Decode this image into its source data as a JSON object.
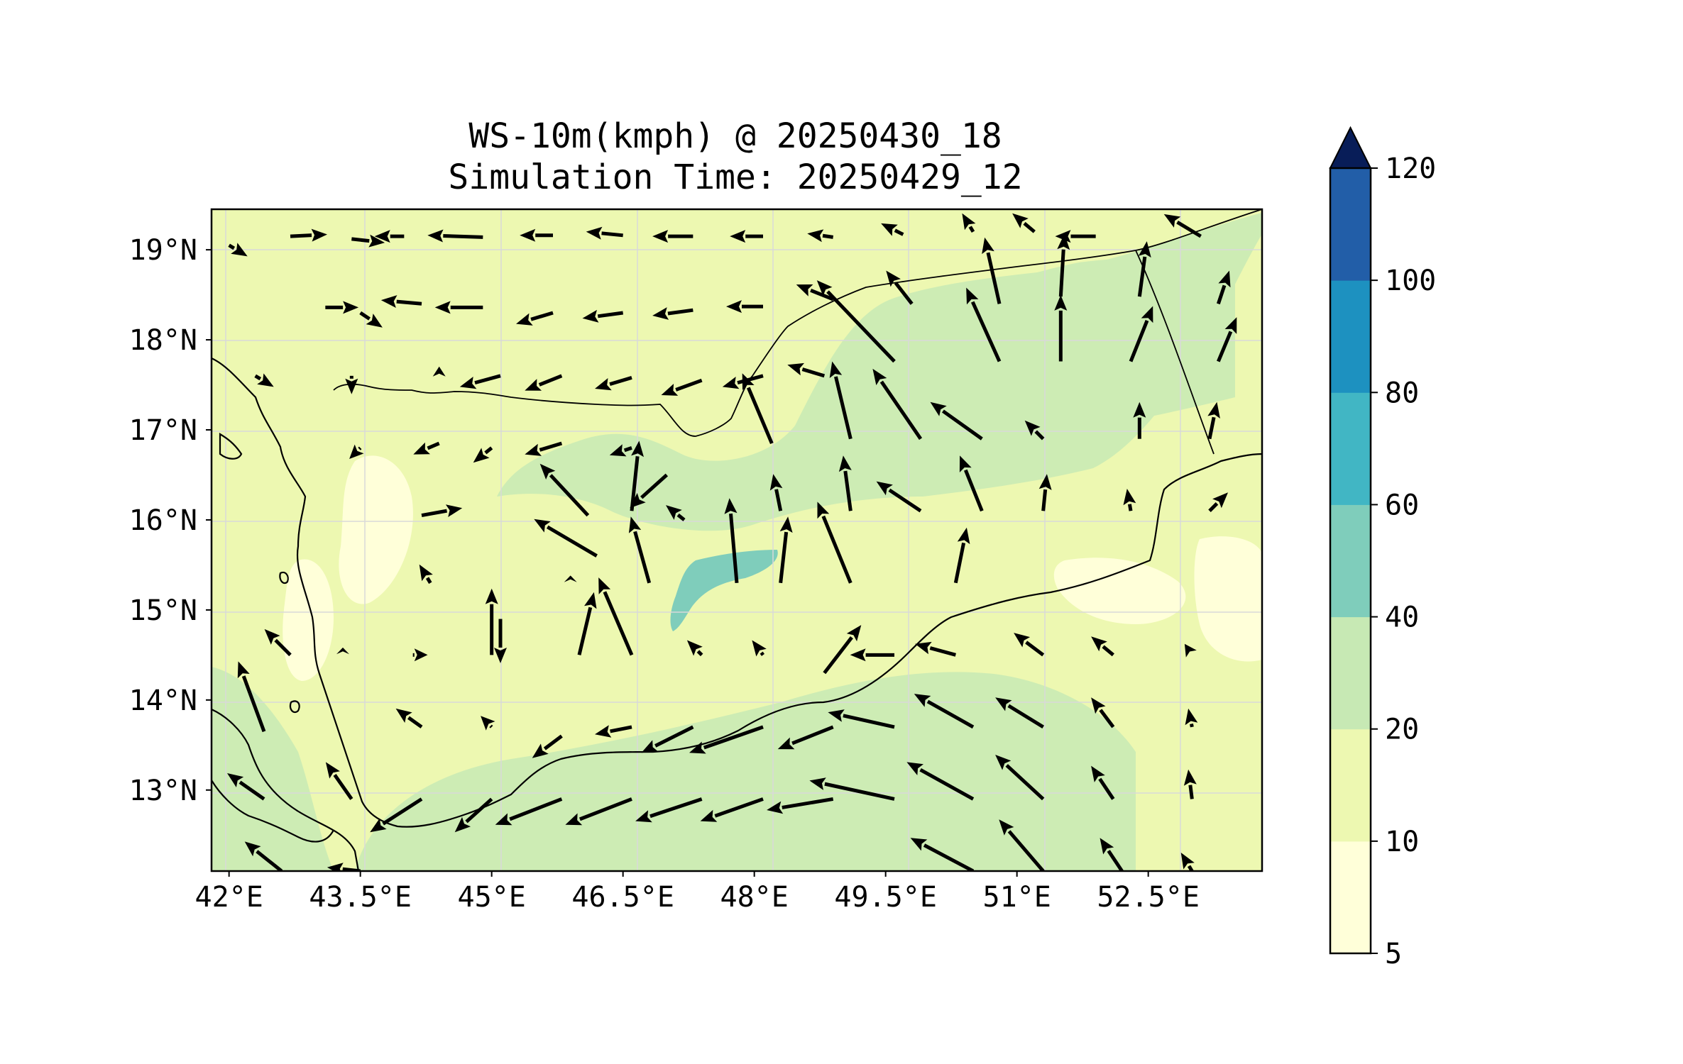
{
  "title": {
    "line1": "WS-10m(kmph) @ 20250430_18",
    "line2": "Simulation Time: 20250429_12"
  },
  "chart_data": {
    "type": "map-contour-vector",
    "variable": "WS-10m(kmph)",
    "valid_time": "20250430_18",
    "simulation_time": "20250429_12",
    "lon_range": [
      41.8,
      53.8
    ],
    "lat_range": [
      12.1,
      19.45
    ],
    "x_ticks": [
      "42°E",
      "43.5°E",
      "45°E",
      "46.5°E",
      "48°E",
      "49.5°E",
      "51°E",
      "52.5°E"
    ],
    "x_tick_values": [
      42,
      43.5,
      45,
      46.5,
      48,
      49.5,
      51,
      52.5
    ],
    "y_ticks": [
      "19°N",
      "18°N",
      "17°N",
      "16°N",
      "15°N",
      "14°N",
      "13°N"
    ],
    "y_tick_values": [
      19,
      18,
      17,
      16,
      15,
      14,
      13
    ],
    "grid": true,
    "colorbar": {
      "levels": [
        5,
        10,
        20,
        40,
        60,
        80,
        100,
        120
      ],
      "tick_labels": [
        "5",
        "10",
        "20",
        "40",
        "60",
        "80",
        "100",
        "120"
      ],
      "colors": [
        "#ffffd9",
        "#edf8b1",
        "#c7e9b4",
        "#7fcdbb",
        "#41b6c4",
        "#1d91c0",
        "#225ea8",
        "#253494"
      ],
      "extend": "max",
      "extend_color": "#081d58"
    },
    "fill_colors": {
      "background": "#edf8b1",
      "calm": "#ffffd9",
      "moderate": "#cdecb4",
      "strong": "#7fcdbb"
    },
    "wind_vectors": [
      {
        "lon": 42.0,
        "lat": 19.05,
        "u": 10,
        "v": -6
      },
      {
        "lon": 42.7,
        "lat": 19.15,
        "u": 20,
        "v": 1
      },
      {
        "lon": 43.4,
        "lat": 19.12,
        "u": 18,
        "v": -2
      },
      {
        "lon": 44.0,
        "lat": 19.15,
        "u": -16,
        "v": 0
      },
      {
        "lon": 44.9,
        "lat": 19.14,
        "u": -30,
        "v": 1
      },
      {
        "lon": 45.7,
        "lat": 19.16,
        "u": -18,
        "v": 0
      },
      {
        "lon": 46.5,
        "lat": 19.16,
        "u": -20,
        "v": 2
      },
      {
        "lon": 47.3,
        "lat": 19.15,
        "u": -22,
        "v": 0
      },
      {
        "lon": 48.1,
        "lat": 19.15,
        "u": -18,
        "v": 0
      },
      {
        "lon": 48.9,
        "lat": 19.14,
        "u": -14,
        "v": 2
      },
      {
        "lon": 49.7,
        "lat": 19.17,
        "u": -12,
        "v": 6
      },
      {
        "lon": 50.5,
        "lat": 19.2,
        "u": -6,
        "v": 10
      },
      {
        "lon": 51.2,
        "lat": 19.2,
        "u": -12,
        "v": 10
      },
      {
        "lon": 51.9,
        "lat": 19.15,
        "u": -22,
        "v": 0
      },
      {
        "lon": 53.1,
        "lat": 19.15,
        "u": -20,
        "v": 12
      },
      {
        "lon": 43.1,
        "lat": 18.36,
        "u": 18,
        "v": 0
      },
      {
        "lon": 43.5,
        "lat": 18.3,
        "u": 12,
        "v": -8
      },
      {
        "lon": 44.2,
        "lat": 18.4,
        "u": -22,
        "v": 2
      },
      {
        "lon": 44.9,
        "lat": 18.36,
        "u": -26,
        "v": 0
      },
      {
        "lon": 45.7,
        "lat": 18.3,
        "u": -20,
        "v": -6
      },
      {
        "lon": 46.5,
        "lat": 18.3,
        "u": -22,
        "v": -3
      },
      {
        "lon": 47.3,
        "lat": 18.33,
        "u": -22,
        "v": -3
      },
      {
        "lon": 48.1,
        "lat": 18.37,
        "u": -20,
        "v": 0
      },
      {
        "lon": 48.9,
        "lat": 18.45,
        "u": -20,
        "v": 8
      },
      {
        "lon": 49.6,
        "lat": 17.76,
        "u": -42,
        "v": 44
      },
      {
        "lon": 49.8,
        "lat": 18.4,
        "u": -14,
        "v": 18
      },
      {
        "lon": 50.8,
        "lat": 17.76,
        "u": -18,
        "v": 40
      },
      {
        "lon": 50.8,
        "lat": 18.4,
        "u": -8,
        "v": 36
      },
      {
        "lon": 51.5,
        "lat": 17.76,
        "u": 0,
        "v": 36
      },
      {
        "lon": 51.5,
        "lat": 18.48,
        "u": 2,
        "v": 34
      },
      {
        "lon": 52.3,
        "lat": 17.76,
        "u": 12,
        "v": 30
      },
      {
        "lon": 52.4,
        "lat": 18.48,
        "u": 4,
        "v": 30
      },
      {
        "lon": 53.3,
        "lat": 17.76,
        "u": 10,
        "v": 24
      },
      {
        "lon": 53.3,
        "lat": 18.4,
        "u": 6,
        "v": 18
      },
      {
        "lon": 42.3,
        "lat": 17.6,
        "u": 10,
        "v": -6
      },
      {
        "lon": 43.4,
        "lat": 17.6,
        "u": 0,
        "v": -10
      },
      {
        "lon": 44.4,
        "lat": 17.58,
        "u": 0,
        "v": 6
      },
      {
        "lon": 45.1,
        "lat": 17.6,
        "u": -22,
        "v": -6
      },
      {
        "lon": 45.8,
        "lat": 17.6,
        "u": -20,
        "v": -8
      },
      {
        "lon": 46.6,
        "lat": 17.58,
        "u": -20,
        "v": -6
      },
      {
        "lon": 47.4,
        "lat": 17.55,
        "u": -22,
        "v": -8
      },
      {
        "lon": 48.1,
        "lat": 17.6,
        "u": -22,
        "v": -6
      },
      {
        "lon": 48.8,
        "lat": 17.6,
        "u": -20,
        "v": 6
      },
      {
        "lon": 42.9,
        "lat": 16.9,
        "u": 0,
        "v": 0
      },
      {
        "lon": 43.5,
        "lat": 16.8,
        "u": -6,
        "v": -6
      },
      {
        "lon": 44.4,
        "lat": 16.85,
        "u": -14,
        "v": -6
      },
      {
        "lon": 45.0,
        "lat": 16.8,
        "u": -10,
        "v": -8
      },
      {
        "lon": 45.8,
        "lat": 16.85,
        "u": -20,
        "v": -6
      },
      {
        "lon": 46.6,
        "lat": 16.8,
        "u": -12,
        "v": -4
      },
      {
        "lon": 47.0,
        "lat": 16.5,
        "u": -20,
        "v": -18
      },
      {
        "lon": 46.6,
        "lat": 16.1,
        "u": 4,
        "v": 38
      },
      {
        "lon": 48.2,
        "lat": 16.85,
        "u": -16,
        "v": 38
      },
      {
        "lon": 49.1,
        "lat": 16.9,
        "u": -10,
        "v": 42
      },
      {
        "lon": 49.9,
        "lat": 16.9,
        "u": -26,
        "v": 38
      },
      {
        "lon": 50.6,
        "lat": 16.9,
        "u": -28,
        "v": 20
      },
      {
        "lon": 51.3,
        "lat": 16.9,
        "u": -10,
        "v": 10
      },
      {
        "lon": 52.4,
        "lat": 16.9,
        "u": 0,
        "v": 20
      },
      {
        "lon": 53.2,
        "lat": 16.9,
        "u": 4,
        "v": 20
      },
      {
        "lon": 44.2,
        "lat": 16.05,
        "u": 22,
        "v": 4
      },
      {
        "lon": 46.1,
        "lat": 16.05,
        "u": -26,
        "v": 28
      },
      {
        "lon": 46.2,
        "lat": 15.6,
        "u": -34,
        "v": 20
      },
      {
        "lon": 46.8,
        "lat": 15.3,
        "u": -10,
        "v": 36
      },
      {
        "lon": 47.2,
        "lat": 16.0,
        "u": -10,
        "v": 8
      },
      {
        "lon": 47.8,
        "lat": 15.3,
        "u": -4,
        "v": 46
      },
      {
        "lon": 48.3,
        "lat": 15.3,
        "u": 4,
        "v": 36
      },
      {
        "lon": 48.3,
        "lat": 16.1,
        "u": -4,
        "v": 20
      },
      {
        "lon": 49.1,
        "lat": 15.3,
        "u": -18,
        "v": 44
      },
      {
        "lon": 49.1,
        "lat": 16.1,
        "u": -4,
        "v": 30
      },
      {
        "lon": 49.9,
        "lat": 16.1,
        "u": -24,
        "v": 16
      },
      {
        "lon": 50.3,
        "lat": 15.3,
        "u": 6,
        "v": 30
      },
      {
        "lon": 50.6,
        "lat": 16.1,
        "u": -12,
        "v": 30
      },
      {
        "lon": 51.3,
        "lat": 16.1,
        "u": 2,
        "v": 20
      },
      {
        "lon": 52.3,
        "lat": 16.1,
        "u": -2,
        "v": 12
      },
      {
        "lon": 53.2,
        "lat": 16.1,
        "u": 10,
        "v": 10
      },
      {
        "lon": 42.7,
        "lat": 15.2,
        "u": 0,
        "v": 0
      },
      {
        "lon": 44.3,
        "lat": 15.3,
        "u": -6,
        "v": 10
      },
      {
        "lon": 45.0,
        "lat": 14.5,
        "u": 0,
        "v": 36
      },
      {
        "lon": 45.1,
        "lat": 14.9,
        "u": 0,
        "v": -24
      },
      {
        "lon": 45.9,
        "lat": 15.3,
        "u": 0,
        "v": 4
      },
      {
        "lon": 46.0,
        "lat": 14.5,
        "u": 8,
        "v": 34
      },
      {
        "lon": 46.6,
        "lat": 14.5,
        "u": -18,
        "v": 42
      },
      {
        "lon": 47.4,
        "lat": 14.5,
        "u": -8,
        "v": 8
      },
      {
        "lon": 48.1,
        "lat": 14.5,
        "u": -6,
        "v": 8
      },
      {
        "lon": 48.8,
        "lat": 14.3,
        "u": 20,
        "v": 26
      },
      {
        "lon": 49.6,
        "lat": 14.5,
        "u": -24,
        "v": 0
      },
      {
        "lon": 50.3,
        "lat": 14.5,
        "u": -22,
        "v": 6
      },
      {
        "lon": 51.3,
        "lat": 14.5,
        "u": -16,
        "v": 12
      },
      {
        "lon": 52.1,
        "lat": 14.5,
        "u": -12,
        "v": 10
      },
      {
        "lon": 53.0,
        "lat": 14.5,
        "u": -4,
        "v": 6
      },
      {
        "lon": 42.4,
        "lat": 13.65,
        "u": -14,
        "v": 38
      },
      {
        "lon": 42.7,
        "lat": 14.5,
        "u": -14,
        "v": 14
      },
      {
        "lon": 43.3,
        "lat": 14.5,
        "u": 0,
        "v": 4
      },
      {
        "lon": 44.1,
        "lat": 14.5,
        "u": 8,
        "v": 0
      },
      {
        "lon": 44.2,
        "lat": 13.7,
        "u": -14,
        "v": 10
      },
      {
        "lon": 45.0,
        "lat": 13.7,
        "u": -6,
        "v": 6
      },
      {
        "lon": 45.8,
        "lat": 13.6,
        "u": -16,
        "v": -12
      },
      {
        "lon": 46.6,
        "lat": 13.7,
        "u": -20,
        "v": -4
      },
      {
        "lon": 47.3,
        "lat": 13.7,
        "u": -28,
        "v": -14
      },
      {
        "lon": 48.1,
        "lat": 13.7,
        "u": -40,
        "v": -14
      },
      {
        "lon": 48.9,
        "lat": 13.7,
        "u": -30,
        "v": -12
      },
      {
        "lon": 49.6,
        "lat": 13.7,
        "u": -36,
        "v": 8
      },
      {
        "lon": 50.5,
        "lat": 13.7,
        "u": -32,
        "v": 18
      },
      {
        "lon": 51.3,
        "lat": 13.7,
        "u": -26,
        "v": 16
      },
      {
        "lon": 52.1,
        "lat": 13.7,
        "u": -12,
        "v": 16
      },
      {
        "lon": 53.0,
        "lat": 13.7,
        "u": -2,
        "v": 10
      },
      {
        "lon": 42.4,
        "lat": 12.9,
        "u": -20,
        "v": 14
      },
      {
        "lon": 43.4,
        "lat": 12.9,
        "u": -14,
        "v": 20
      },
      {
        "lon": 44.2,
        "lat": 12.9,
        "u": -28,
        "v": -18
      },
      {
        "lon": 45.0,
        "lat": 12.9,
        "u": -20,
        "v": -18
      },
      {
        "lon": 45.8,
        "lat": 12.9,
        "u": -36,
        "v": -14
      },
      {
        "lon": 46.6,
        "lat": 12.9,
        "u": -36,
        "v": -14
      },
      {
        "lon": 47.4,
        "lat": 12.9,
        "u": -36,
        "v": -12
      },
      {
        "lon": 48.1,
        "lat": 12.9,
        "u": -34,
        "v": -12
      },
      {
        "lon": 48.9,
        "lat": 12.9,
        "u": -36,
        "v": -6
      },
      {
        "lon": 49.6,
        "lat": 12.9,
        "u": -46,
        "v": 10
      },
      {
        "lon": 50.5,
        "lat": 12.9,
        "u": -36,
        "v": 20
      },
      {
        "lon": 51.3,
        "lat": 12.9,
        "u": -26,
        "v": 24
      },
      {
        "lon": 52.1,
        "lat": 12.9,
        "u": -12,
        "v": 18
      },
      {
        "lon": 53.0,
        "lat": 12.9,
        "u": -2,
        "v": 16
      },
      {
        "lon": 42.6,
        "lat": 12.1,
        "u": -20,
        "v": 16
      },
      {
        "lon": 43.5,
        "lat": 12.1,
        "u": -18,
        "v": 2
      },
      {
        "lon": 50.5,
        "lat": 12.1,
        "u": -34,
        "v": 18
      },
      {
        "lon": 51.3,
        "lat": 12.1,
        "u": -24,
        "v": 28
      },
      {
        "lon": 52.2,
        "lat": 12.1,
        "u": -12,
        "v": 18
      },
      {
        "lon": 53.0,
        "lat": 12.1,
        "u": -6,
        "v": 10
      }
    ]
  }
}
